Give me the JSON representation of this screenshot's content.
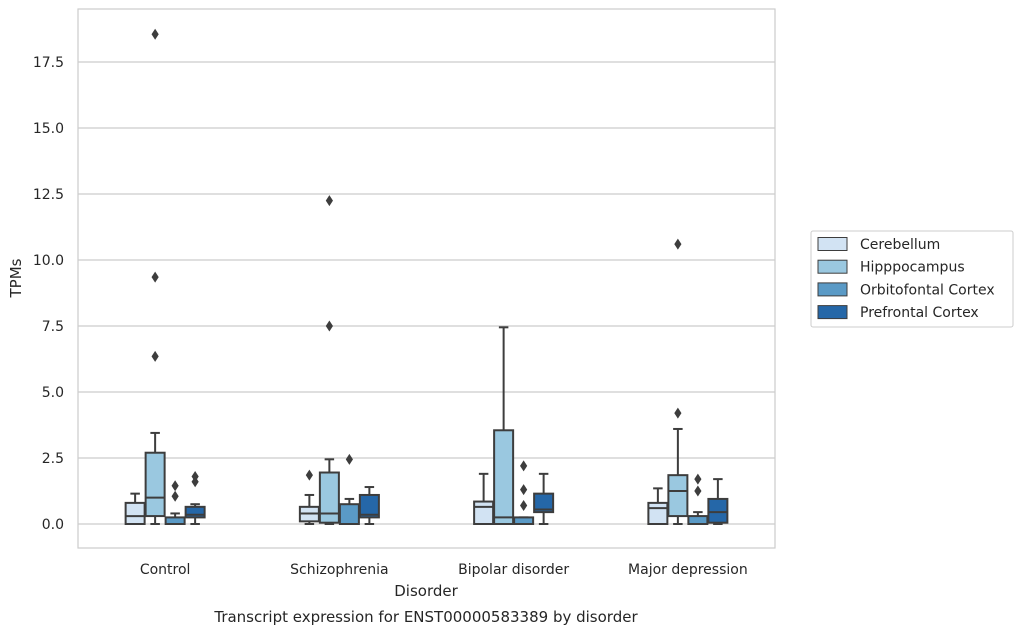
{
  "chart_data": {
    "type": "box",
    "xlabel": "Disorder",
    "ylabel": "TPMs",
    "caption": "Transcript expression for ENST00000583389 by disorder",
    "ylim": [
      -0.9,
      19.4
    ],
    "yticks": [
      "0.0",
      "2.5",
      "5.0",
      "7.5",
      "10.0",
      "12.5",
      "15.0",
      "17.5"
    ],
    "grid": "horizontal",
    "legend_position": "right",
    "categories": [
      "Control",
      "Schizophrenia",
      "Bipolar disorder",
      "Major depression"
    ],
    "series": [
      {
        "name": "Cerebellum",
        "color": "#d2e3f3",
        "boxes": [
          {
            "whislo": 0.0,
            "q1": 0.0,
            "med": 0.3,
            "q3": 0.8,
            "whishi": 1.15,
            "fliers": []
          },
          {
            "whislo": 0.0,
            "q1": 0.1,
            "med": 0.4,
            "q3": 0.65,
            "whishi": 1.1,
            "fliers": [
              1.85
            ]
          },
          {
            "whislo": 0.0,
            "q1": 0.0,
            "med": 0.65,
            "q3": 0.85,
            "whishi": 1.9,
            "fliers": []
          },
          {
            "whislo": 0.0,
            "q1": 0.0,
            "med": 0.6,
            "q3": 0.8,
            "whishi": 1.35,
            "fliers": []
          }
        ]
      },
      {
        "name": "Hipppocampus",
        "color": "#9ac8e0",
        "boxes": [
          {
            "whislo": 0.0,
            "q1": 0.3,
            "med": 1.0,
            "q3": 2.7,
            "whishi": 3.45,
            "fliers": [
              6.35,
              9.35,
              18.55
            ]
          },
          {
            "whislo": 0.0,
            "q1": 0.05,
            "med": 0.4,
            "q3": 1.95,
            "whishi": 2.45,
            "fliers": [
              7.5,
              12.25
            ]
          },
          {
            "whislo": 0.0,
            "q1": 0.0,
            "med": 0.25,
            "q3": 3.55,
            "whishi": 7.45,
            "fliers": []
          },
          {
            "whislo": 0.0,
            "q1": 0.3,
            "med": 1.25,
            "q3": 1.85,
            "whishi": 3.6,
            "fliers": [
              4.2,
              10.6
            ]
          }
        ]
      },
      {
        "name": "Orbitofontal Cortex",
        "color": "#5a9ac6",
        "boxes": [
          {
            "whislo": 0.0,
            "q1": 0.0,
            "med": 0.0,
            "q3": 0.25,
            "whishi": 0.4,
            "fliers": [
              1.05,
              1.45
            ]
          },
          {
            "whislo": 0.0,
            "q1": 0.0,
            "med": 0.0,
            "q3": 0.75,
            "whishi": 0.95,
            "fliers": [
              2.45
            ]
          },
          {
            "whislo": 0.0,
            "q1": 0.0,
            "med": 0.0,
            "q3": 0.25,
            "whishi": 0.25,
            "fliers": [
              0.7,
              1.3,
              2.2
            ]
          },
          {
            "whislo": 0.0,
            "q1": 0.0,
            "med": 0.0,
            "q3": 0.3,
            "whishi": 0.45,
            "fliers": [
              1.25,
              1.7
            ]
          }
        ]
      },
      {
        "name": "Prefrontal Cortex",
        "color": "#2567a8",
        "boxes": [
          {
            "whislo": 0.0,
            "q1": 0.25,
            "med": 0.35,
            "q3": 0.65,
            "whishi": 0.75,
            "fliers": [
              1.6,
              1.8
            ]
          },
          {
            "whislo": 0.0,
            "q1": 0.25,
            "med": 0.35,
            "q3": 1.1,
            "whishi": 1.4,
            "fliers": []
          },
          {
            "whislo": 0.0,
            "q1": 0.45,
            "med": 0.55,
            "q3": 1.15,
            "whishi": 1.9,
            "fliers": []
          },
          {
            "whislo": 0.0,
            "q1": 0.05,
            "med": 0.45,
            "q3": 0.95,
            "whishi": 1.7,
            "fliers": []
          }
        ]
      }
    ]
  }
}
